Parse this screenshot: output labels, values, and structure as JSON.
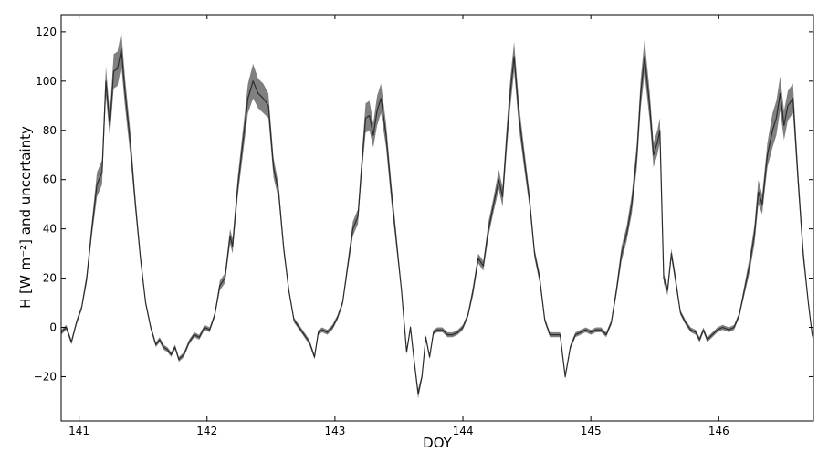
{
  "chart_data": {
    "type": "line",
    "title": "",
    "xlabel": "DOY",
    "ylabel": "H [W m⁻²] and uncertainty",
    "xlim": [
      140.86,
      146.74
    ],
    "ylim": [
      -38,
      127
    ],
    "xticks": [
      141,
      142,
      143,
      144,
      145,
      146
    ],
    "yticks": [
      -20,
      0,
      20,
      40,
      60,
      80,
      100,
      120
    ],
    "xtick_labels": [
      "141",
      "142",
      "143",
      "144",
      "145",
      "146"
    ],
    "ytick_labels": [
      "−20",
      "0",
      "20",
      "40",
      "60",
      "80",
      "100",
      "120"
    ],
    "grid": false,
    "legend": "none",
    "colors": {
      "line": "#2b2b2b",
      "band": "#808080"
    },
    "series": [
      {
        "points": [
          [
            140.86,
            -2,
            1
          ],
          [
            140.9,
            0,
            1
          ],
          [
            140.94,
            -6,
            1
          ],
          [
            140.98,
            2,
            1
          ],
          [
            141.02,
            8,
            1
          ],
          [
            141.06,
            20,
            2
          ],
          [
            141.1,
            40,
            3
          ],
          [
            141.14,
            58,
            5
          ],
          [
            141.18,
            63,
            5
          ],
          [
            141.21,
            100,
            6
          ],
          [
            141.24,
            82,
            5
          ],
          [
            141.27,
            104,
            7
          ],
          [
            141.3,
            105,
            7
          ],
          [
            141.33,
            113,
            7
          ],
          [
            141.36,
            95,
            6
          ],
          [
            141.4,
            75,
            5
          ],
          [
            141.44,
            50,
            3
          ],
          [
            141.48,
            28,
            2
          ],
          [
            141.52,
            10,
            1
          ],
          [
            141.56,
            0,
            1
          ],
          [
            141.6,
            -7,
            1
          ],
          [
            141.63,
            -5,
            1
          ],
          [
            141.66,
            -8,
            1
          ],
          [
            141.69,
            -9,
            1
          ],
          [
            141.72,
            -11,
            1
          ],
          [
            141.75,
            -8,
            1
          ],
          [
            141.78,
            -13,
            1
          ],
          [
            141.82,
            -11,
            1
          ],
          [
            141.86,
            -6,
            1
          ],
          [
            141.9,
            -3,
            1
          ],
          [
            141.94,
            -4,
            1
          ],
          [
            141.98,
            0,
            1
          ],
          [
            142.02,
            -1,
            1
          ],
          [
            142.06,
            5,
            1
          ],
          [
            142.1,
            17,
            2
          ],
          [
            142.14,
            20,
            2
          ],
          [
            142.18,
            37,
            3
          ],
          [
            142.2,
            33,
            3
          ],
          [
            142.24,
            57,
            4
          ],
          [
            142.28,
            75,
            5
          ],
          [
            142.32,
            93,
            6
          ],
          [
            142.36,
            100,
            7
          ],
          [
            142.4,
            95,
            6
          ],
          [
            142.44,
            93,
            6
          ],
          [
            142.48,
            90,
            5
          ],
          [
            142.52,
            65,
            4
          ],
          [
            142.56,
            55,
            3
          ],
          [
            142.6,
            32,
            2
          ],
          [
            142.64,
            15,
            1
          ],
          [
            142.68,
            3,
            1
          ],
          [
            142.72,
            0,
            1
          ],
          [
            142.76,
            -3,
            1
          ],
          [
            142.8,
            -6,
            1
          ],
          [
            142.84,
            -12,
            1
          ],
          [
            142.87,
            -2,
            1
          ],
          [
            142.9,
            -1,
            1
          ],
          [
            142.94,
            -2,
            1
          ],
          [
            142.98,
            0,
            1
          ],
          [
            143.02,
            4,
            1
          ],
          [
            143.06,
            10,
            1
          ],
          [
            143.1,
            25,
            2
          ],
          [
            143.14,
            40,
            3
          ],
          [
            143.18,
            45,
            3
          ],
          [
            143.21,
            66,
            4
          ],
          [
            143.24,
            85,
            6
          ],
          [
            143.27,
            86,
            6
          ],
          [
            143.3,
            78,
            5
          ],
          [
            143.33,
            88,
            6
          ],
          [
            143.36,
            93,
            6
          ],
          [
            143.4,
            78,
            5
          ],
          [
            143.44,
            55,
            4
          ],
          [
            143.48,
            35,
            3
          ],
          [
            143.52,
            15,
            1
          ],
          [
            143.56,
            -10,
            1
          ],
          [
            143.59,
            0,
            1
          ],
          [
            143.62,
            -14,
            1
          ],
          [
            143.65,
            -27,
            2
          ],
          [
            143.68,
            -20,
            1
          ],
          [
            143.71,
            -4,
            1
          ],
          [
            143.74,
            -12,
            1
          ],
          [
            143.77,
            -2,
            1
          ],
          [
            143.8,
            -1,
            1
          ],
          [
            143.84,
            -1,
            1
          ],
          [
            143.88,
            -3,
            1
          ],
          [
            143.92,
            -3,
            1
          ],
          [
            143.96,
            -2,
            1
          ],
          [
            144.0,
            0,
            1
          ],
          [
            144.04,
            5,
            1
          ],
          [
            144.08,
            15,
            2
          ],
          [
            144.12,
            28,
            2
          ],
          [
            144.16,
            25,
            2
          ],
          [
            144.2,
            40,
            3
          ],
          [
            144.24,
            50,
            3
          ],
          [
            144.28,
            60,
            4
          ],
          [
            144.31,
            53,
            4
          ],
          [
            144.34,
            75,
            5
          ],
          [
            144.37,
            95,
            6
          ],
          [
            144.4,
            110,
            6
          ],
          [
            144.44,
            85,
            5
          ],
          [
            144.48,
            68,
            4
          ],
          [
            144.52,
            52,
            3
          ],
          [
            144.56,
            30,
            2
          ],
          [
            144.6,
            20,
            2
          ],
          [
            144.64,
            3,
            1
          ],
          [
            144.68,
            -3,
            1
          ],
          [
            144.72,
            -3,
            1
          ],
          [
            144.76,
            -3,
            1
          ],
          [
            144.8,
            -20,
            1
          ],
          [
            144.84,
            -8,
            1
          ],
          [
            144.88,
            -3,
            1
          ],
          [
            144.92,
            -2,
            1
          ],
          [
            144.96,
            -1,
            1
          ],
          [
            145.0,
            -2,
            1
          ],
          [
            145.04,
            -1,
            1
          ],
          [
            145.08,
            -1,
            1
          ],
          [
            145.12,
            -3,
            1
          ],
          [
            145.16,
            2,
            1
          ],
          [
            145.2,
            15,
            2
          ],
          [
            145.24,
            30,
            3
          ],
          [
            145.28,
            38,
            3
          ],
          [
            145.32,
            50,
            4
          ],
          [
            145.36,
            70,
            5
          ],
          [
            145.39,
            95,
            6
          ],
          [
            145.42,
            110,
            7
          ],
          [
            145.46,
            90,
            6
          ],
          [
            145.49,
            70,
            5
          ],
          [
            145.52,
            75,
            5
          ],
          [
            145.54,
            80,
            5
          ],
          [
            145.57,
            20,
            2
          ],
          [
            145.6,
            15,
            2
          ],
          [
            145.63,
            30,
            2
          ],
          [
            145.66,
            20,
            2
          ],
          [
            145.7,
            6,
            1
          ],
          [
            145.74,
            2,
            1
          ],
          [
            145.78,
            -1,
            1
          ],
          [
            145.82,
            -2,
            1
          ],
          [
            145.85,
            -5,
            1
          ],
          [
            145.88,
            -1,
            1
          ],
          [
            145.91,
            -5,
            1
          ],
          [
            145.95,
            -3,
            1
          ],
          [
            145.99,
            -1,
            1
          ],
          [
            146.03,
            0,
            1
          ],
          [
            146.08,
            -1,
            1
          ],
          [
            146.12,
            0,
            1
          ],
          [
            146.16,
            5,
            1
          ],
          [
            146.2,
            15,
            2
          ],
          [
            146.24,
            25,
            3
          ],
          [
            146.28,
            38,
            4
          ],
          [
            146.31,
            55,
            5
          ],
          [
            146.34,
            50,
            4
          ],
          [
            146.38,
            70,
            5
          ],
          [
            146.42,
            80,
            7
          ],
          [
            146.45,
            85,
            7
          ],
          [
            146.48,
            95,
            7
          ],
          [
            146.51,
            82,
            6
          ],
          [
            146.54,
            90,
            6
          ],
          [
            146.58,
            93,
            6
          ],
          [
            146.62,
            60,
            4
          ],
          [
            146.66,
            30,
            3
          ],
          [
            146.7,
            10,
            1
          ],
          [
            146.73,
            -3,
            1
          ],
          [
            146.74,
            -4,
            1
          ]
        ]
      }
    ]
  }
}
